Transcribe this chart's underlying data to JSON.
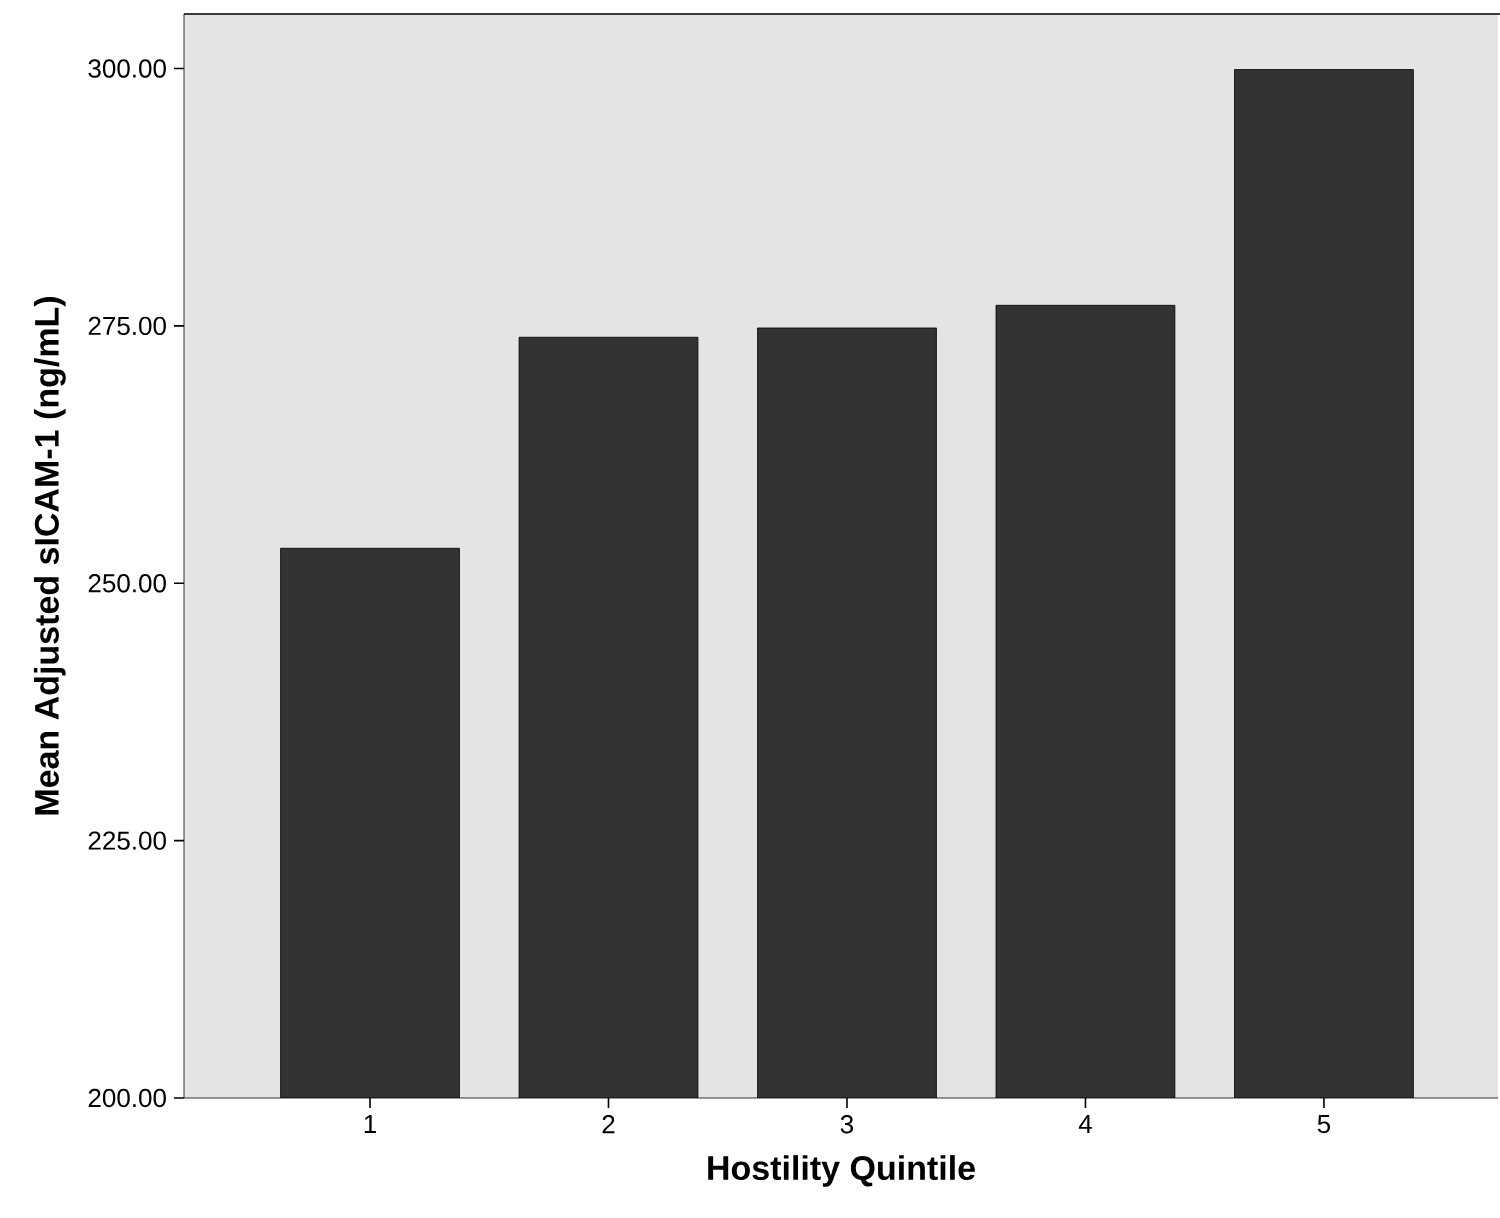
{
  "chart_data": {
    "type": "bar",
    "xlabel": "Hostility Quintile",
    "ylabel": "Mean Adjusted sICAM-1 (ng/mL)",
    "categories": [
      "1",
      "2",
      "3",
      "4",
      "5"
    ],
    "values": [
      253.4,
      273.9,
      274.8,
      277.0,
      299.9
    ],
    "color": "#333333",
    "ylim": [
      200,
      305.3
    ],
    "yticks": [
      {
        "value": 200,
        "label": "200.00"
      },
      {
        "value": 225,
        "label": "225.00"
      },
      {
        "value": 250,
        "label": "250.00"
      },
      {
        "value": 275,
        "label": "275.00"
      },
      {
        "value": 300,
        "label": "300.00"
      }
    ],
    "grid": false
  }
}
